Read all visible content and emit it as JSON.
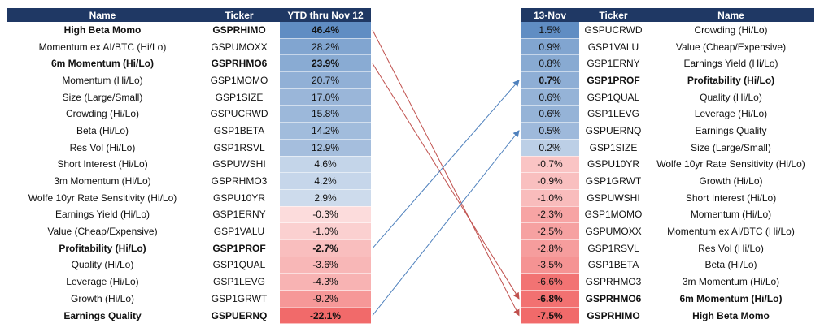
{
  "left_headers": [
    "Name",
    "Ticker",
    "YTD thru Nov 12"
  ],
  "right_headers": [
    "13-Nov",
    "Ticker",
    "Name"
  ],
  "left_rows": [
    {
      "name": "High Beta Momo",
      "ticker": "GSPRHIMO",
      "value": "46.4%",
      "bold": true
    },
    {
      "name": "Momentum ex AI/BTC  (Hi/Lo)",
      "ticker": "GSPUMOXX",
      "value": "28.2%",
      "bold": false
    },
    {
      "name": "6m Momentum (Hi/Lo)",
      "ticker": "GSPRHMO6",
      "value": "23.9%",
      "bold": true
    },
    {
      "name": "Momentum (Hi/Lo)",
      "ticker": "GSP1MOMO",
      "value": "20.7%",
      "bold": false
    },
    {
      "name": "Size (Large/Small)",
      "ticker": "GSP1SIZE",
      "value": "17.0%",
      "bold": false
    },
    {
      "name": "Crowding (Hi/Lo)",
      "ticker": "GSPUCRWD",
      "value": "15.8%",
      "bold": false
    },
    {
      "name": "Beta (Hi/Lo)",
      "ticker": "GSP1BETA",
      "value": "14.2%",
      "bold": false
    },
    {
      "name": "Res Vol (Hi/Lo)",
      "ticker": "GSP1RSVL",
      "value": "12.9%",
      "bold": false
    },
    {
      "name": "Short Interest (Hi/Lo)",
      "ticker": "GSPUWSHI",
      "value": "4.6%",
      "bold": false
    },
    {
      "name": "3m Momentum (Hi/Lo)",
      "ticker": "GSPRHMO3",
      "value": "4.2%",
      "bold": false
    },
    {
      "name": "Wolfe 10yr Rate Sensitivity (Hi/Lo)",
      "ticker": "GSPU10YR",
      "value": "2.9%",
      "bold": false
    },
    {
      "name": "Earnings Yield (Hi/Lo)",
      "ticker": "GSP1ERNY",
      "value": "-0.3%",
      "bold": false
    },
    {
      "name": "Value (Cheap/Expensive)",
      "ticker": "GSP1VALU",
      "value": "-1.0%",
      "bold": false
    },
    {
      "name": "Profitability (Hi/Lo)",
      "ticker": "GSP1PROF",
      "value": "-2.7%",
      "bold": true
    },
    {
      "name": "Quality (Hi/Lo)",
      "ticker": "GSP1QUAL",
      "value": "-3.6%",
      "bold": false
    },
    {
      "name": "Leverage (Hi/Lo)",
      "ticker": "GSP1LEVG",
      "value": "-4.3%",
      "bold": false
    },
    {
      "name": "Growth (Hi/Lo)",
      "ticker": "GSP1GRWT",
      "value": "-9.2%",
      "bold": false
    },
    {
      "name": "Earnings Quality",
      "ticker": "GSPUERNQ",
      "value": "-22.1%",
      "bold": true
    }
  ],
  "right_rows": [
    {
      "value": "1.5%",
      "ticker": "GSPUCRWD",
      "name": "Crowding (Hi/Lo)",
      "bold": false
    },
    {
      "value": "0.9%",
      "ticker": "GSP1VALU",
      "name": "Value (Cheap/Expensive)",
      "bold": false
    },
    {
      "value": "0.8%",
      "ticker": "GSP1ERNY",
      "name": "Earnings Yield (Hi/Lo)",
      "bold": false
    },
    {
      "value": "0.7%",
      "ticker": "GSP1PROF",
      "name": "Profitability (Hi/Lo)",
      "bold": true
    },
    {
      "value": "0.6%",
      "ticker": "GSP1QUAL",
      "name": "Quality (Hi/Lo)",
      "bold": false
    },
    {
      "value": "0.6%",
      "ticker": "GSP1LEVG",
      "name": "Leverage (Hi/Lo)",
      "bold": false
    },
    {
      "value": "0.5%",
      "ticker": "GSPUERNQ",
      "name": "Earnings Quality",
      "bold": false
    },
    {
      "value": "0.2%",
      "ticker": "GSP1SIZE",
      "name": "Size (Large/Small)",
      "bold": false
    },
    {
      "value": "-0.7%",
      "ticker": "GSPU10YR",
      "name": "Wolfe 10yr Rate Sensitivity (Hi/Lo)",
      "bold": false
    },
    {
      "value": "-0.9%",
      "ticker": "GSP1GRWT",
      "name": "Growth (Hi/Lo)",
      "bold": false
    },
    {
      "value": "-1.0%",
      "ticker": "GSPUWSHI",
      "name": "Short Interest (Hi/Lo)",
      "bold": false
    },
    {
      "value": "-2.3%",
      "ticker": "GSP1MOMO",
      "name": "Momentum (Hi/Lo)",
      "bold": false
    },
    {
      "value": "-2.5%",
      "ticker": "GSPUMOXX",
      "name": "Momentum ex AI/BTC  (Hi/Lo)",
      "bold": false
    },
    {
      "value": "-2.8%",
      "ticker": "GSP1RSVL",
      "name": "Res Vol (Hi/Lo)",
      "bold": false
    },
    {
      "value": "-3.5%",
      "ticker": "GSP1BETA",
      "name": "Beta (Hi/Lo)",
      "bold": false
    },
    {
      "value": "-6.6%",
      "ticker": "GSPRHMO3",
      "name": "3m Momentum (Hi/Lo)",
      "bold": false
    },
    {
      "value": "-6.8%",
      "ticker": "GSPRHMO6",
      "name": "6m Momentum (Hi/Lo)",
      "bold": true
    },
    {
      "value": "-7.5%",
      "ticker": "GSPRHIMO",
      "name": "High Beta Momo",
      "bold": true
    }
  ],
  "chart_data": {
    "type": "table",
    "left": {
      "headers": [
        "Name",
        "Ticker",
        "YTD thru Nov 12"
      ],
      "values_pct": [
        46.4,
        28.2,
        23.9,
        20.7,
        17.0,
        15.8,
        14.2,
        12.9,
        4.6,
        4.2,
        2.9,
        -0.3,
        -1.0,
        -2.7,
        -3.6,
        -4.3,
        -9.2,
        -22.1
      ]
    },
    "right": {
      "headers": [
        "13-Nov",
        "Ticker",
        "Name"
      ],
      "values_pct": [
        1.5,
        0.9,
        0.8,
        0.7,
        0.6,
        0.6,
        0.5,
        0.2,
        -0.7,
        -0.9,
        -1.0,
        -2.3,
        -2.5,
        -2.8,
        -3.5,
        -6.6,
        -6.8,
        -7.5
      ]
    },
    "arrows": [
      {
        "from": "GSPRHIMO",
        "to": "GSPRHIMO",
        "color": "#c0504d"
      },
      {
        "from": "GSPRHMO6",
        "to": "GSPRHMO6",
        "color": "#c0504d"
      },
      {
        "from": "GSP1PROF",
        "to": "GSP1PROF",
        "color": "#4f81bd"
      },
      {
        "from": "GSPUERNQ",
        "to": "GSPUERNQ",
        "color": "#4f81bd"
      }
    ],
    "colors": {
      "header": "#1f3864",
      "positive": "#4f81bd",
      "negative": "#f05a5a"
    }
  }
}
